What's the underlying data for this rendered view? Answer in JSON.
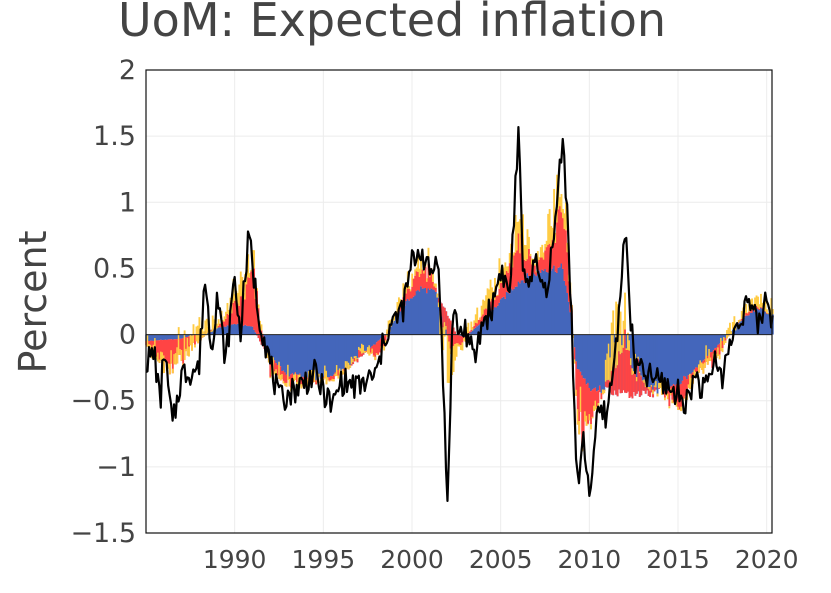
{
  "chart_data": {
    "type": "bar",
    "title": "UoM: Expected inflation",
    "xlabel": "",
    "ylabel": "Percent",
    "xlim": [
      1985.0,
      2020.3
    ],
    "ylim": [
      -1.5,
      2
    ],
    "yticks": [
      2,
      1.5,
      1,
      0.5,
      0,
      -0.5,
      -1,
      -1.5
    ],
    "ytick_labels": [
      "2",
      "1.5",
      "1",
      "0.5",
      "0",
      "−0.5",
      "−1",
      "−1.5"
    ],
    "xticks": [
      1990,
      1995,
      2000,
      2005,
      2010,
      2015,
      2020
    ],
    "xtick_labels": [
      "1990",
      "1995",
      "2000",
      "2005",
      "2010",
      "2015",
      "2020"
    ],
    "grid": true,
    "legend": "none",
    "stacking": "cumulative from zero: blue, then red, then yellow",
    "colors": {
      "blue": "#4466bb",
      "red": "#ff4444",
      "yellow": "#ffcc44",
      "line": "#000000"
    },
    "component_keyframes": {
      "blue": [
        [
          1985.0,
          -0.05
        ],
        [
          1987.0,
          -0.03
        ],
        [
          1988.5,
          0.03
        ],
        [
          1990.0,
          0.08
        ],
        [
          1991.0,
          0.06
        ],
        [
          1991.8,
          -0.15
        ],
        [
          1993.0,
          -0.3
        ],
        [
          1995.0,
          -0.33
        ],
        [
          1996.5,
          -0.25
        ],
        [
          1997.5,
          -0.12
        ],
        [
          1998.5,
          0.0
        ],
        [
          1999.5,
          0.22
        ],
        [
          2000.5,
          0.35
        ],
        [
          2001.3,
          0.32
        ],
        [
          2002.0,
          0.15
        ],
        [
          2002.5,
          0.0
        ],
        [
          2003.0,
          -0.02
        ],
        [
          2004.0,
          0.1
        ],
        [
          2005.0,
          0.25
        ],
        [
          2006.0,
          0.4
        ],
        [
          2007.5,
          0.5
        ],
        [
          2008.5,
          0.5
        ],
        [
          2009.0,
          0.1
        ],
        [
          2009.3,
          -0.25
        ],
        [
          2010.0,
          -0.4
        ],
        [
          2011.0,
          -0.42
        ],
        [
          2012.0,
          -0.45
        ],
        [
          2013.5,
          -0.45
        ],
        [
          2015.0,
          -0.38
        ],
        [
          2016.5,
          -0.18
        ],
        [
          2017.5,
          -0.05
        ],
        [
          2018.5,
          0.1
        ],
        [
          2019.5,
          0.2
        ],
        [
          2020.3,
          0.15
        ]
      ],
      "red": [
        [
          1985.0,
          -0.05
        ],
        [
          1986.0,
          -0.2
        ],
        [
          1987.0,
          -0.18
        ],
        [
          1988.0,
          -0.05
        ],
        [
          1989.0,
          0.0
        ],
        [
          1990.5,
          0.2
        ],
        [
          1991.0,
          0.4
        ],
        [
          1991.5,
          0.1
        ],
        [
          1992.0,
          -0.1
        ],
        [
          1993.0,
          -0.08
        ],
        [
          1995.0,
          -0.02
        ],
        [
          1996.0,
          -0.05
        ],
        [
          1997.0,
          0.05
        ],
        [
          1998.0,
          -0.1
        ],
        [
          1999.0,
          0.0
        ],
        [
          2000.0,
          0.1
        ],
        [
          2001.0,
          0.15
        ],
        [
          2002.0,
          -0.2
        ],
        [
          2003.0,
          0.0
        ],
        [
          2004.0,
          0.05
        ],
        [
          2005.0,
          0.1
        ],
        [
          2006.0,
          0.3
        ],
        [
          2007.0,
          0.05
        ],
        [
          2008.0,
          0.2
        ],
        [
          2008.5,
          0.5
        ],
        [
          2009.0,
          0.1
        ],
        [
          2009.5,
          -0.5
        ],
        [
          2010.0,
          -0.2
        ],
        [
          2011.0,
          0.05
        ],
        [
          2012.0,
          0.4
        ],
        [
          2013.0,
          0.1
        ],
        [
          2014.0,
          0.0
        ],
        [
          2015.0,
          -0.18
        ],
        [
          2016.0,
          -0.05
        ],
        [
          2017.0,
          -0.1
        ],
        [
          2018.0,
          0.0
        ],
        [
          2019.0,
          0.02
        ],
        [
          2020.3,
          0.0
        ]
      ],
      "yellow": [
        [
          1985.0,
          0.05
        ],
        [
          1986.5,
          0.12
        ],
        [
          1987.5,
          0.08
        ],
        [
          1988.5,
          0.1
        ],
        [
          1989.5,
          0.05
        ],
        [
          1990.5,
          0.1
        ],
        [
          1991.5,
          0.05
        ],
        [
          1993.0,
          0.05
        ],
        [
          1995.0,
          0.04
        ],
        [
          1996.0,
          0.02
        ],
        [
          1998.0,
          0.02
        ],
        [
          2000.0,
          0.05
        ],
        [
          2001.0,
          0.05
        ],
        [
          2002.0,
          -0.2
        ],
        [
          2003.0,
          0.02
        ],
        [
          2004.0,
          0.05
        ],
        [
          2006.0,
          0.2
        ],
        [
          2007.0,
          0.05
        ],
        [
          2008.3,
          0.25
        ],
        [
          2009.0,
          0.0
        ],
        [
          2009.5,
          0.1
        ],
        [
          2010.5,
          -0.05
        ],
        [
          2011.5,
          0.3
        ],
        [
          2012.5,
          0.0
        ],
        [
          2014.0,
          0.03
        ],
        [
          2016.0,
          0.05
        ],
        [
          2018.0,
          0.02
        ],
        [
          2020.3,
          0.05
        ]
      ]
    },
    "line_keyframes": [
      [
        1985.0,
        -0.2
      ],
      [
        1985.5,
        -0.15
      ],
      [
        1985.8,
        -0.55
      ],
      [
        1986.0,
        -0.1
      ],
      [
        1986.5,
        -0.7
      ],
      [
        1987.0,
        -0.3
      ],
      [
        1988.0,
        -0.25
      ],
      [
        1988.3,
        0.45
      ],
      [
        1988.7,
        -0.1
      ],
      [
        1989.0,
        0.3
      ],
      [
        1989.5,
        -0.2
      ],
      [
        1990.0,
        0.45
      ],
      [
        1990.3,
        0.0
      ],
      [
        1990.8,
        0.75
      ],
      [
        1991.3,
        0.2
      ],
      [
        1991.8,
        -0.1
      ],
      [
        1992.5,
        -0.5
      ],
      [
        1993.5,
        -0.4
      ],
      [
        1994.5,
        -0.3
      ],
      [
        1995.5,
        -0.55
      ],
      [
        1996.0,
        -0.35
      ],
      [
        1997.0,
        -0.4
      ],
      [
        1998.0,
        -0.3
      ],
      [
        1998.5,
        0.0
      ],
      [
        1999.5,
        0.2
      ],
      [
        2000.0,
        0.55
      ],
      [
        2000.5,
        0.65
      ],
      [
        2001.0,
        0.45
      ],
      [
        2001.5,
        0.6
      ],
      [
        2002.0,
        -1.3
      ],
      [
        2002.3,
        0.2
      ],
      [
        2002.7,
        0.0
      ],
      [
        2003.0,
        0.05
      ],
      [
        2003.5,
        -0.2
      ],
      [
        2004.0,
        0.1
      ],
      [
        2004.5,
        0.2
      ],
      [
        2005.0,
        0.5
      ],
      [
        2005.5,
        0.3
      ],
      [
        2006.0,
        1.5
      ],
      [
        2006.3,
        0.4
      ],
      [
        2007.0,
        0.5
      ],
      [
        2007.5,
        0.3
      ],
      [
        2008.0,
        0.7
      ],
      [
        2008.5,
        1.55
      ],
      [
        2008.8,
        0.8
      ],
      [
        2009.0,
        0.1
      ],
      [
        2009.3,
        -1.15
      ],
      [
        2009.7,
        -0.8
      ],
      [
        2010.0,
        -1.2
      ],
      [
        2010.5,
        -0.6
      ],
      [
        2011.0,
        -0.6
      ],
      [
        2011.5,
        -0.1
      ],
      [
        2012.0,
        0.8
      ],
      [
        2012.5,
        -0.2
      ],
      [
        2013.0,
        -0.3
      ],
      [
        2014.0,
        -0.35
      ],
      [
        2015.0,
        -0.45
      ],
      [
        2015.5,
        -0.5
      ],
      [
        2016.0,
        -0.3
      ],
      [
        2016.5,
        -0.45
      ],
      [
        2017.0,
        -0.2
      ],
      [
        2017.5,
        -0.3
      ],
      [
        2018.0,
        -0.05
      ],
      [
        2018.5,
        0.15
      ],
      [
        2019.0,
        0.25
      ],
      [
        2019.5,
        0.05
      ],
      [
        2020.0,
        0.3
      ],
      [
        2020.3,
        0.1
      ]
    ]
  }
}
